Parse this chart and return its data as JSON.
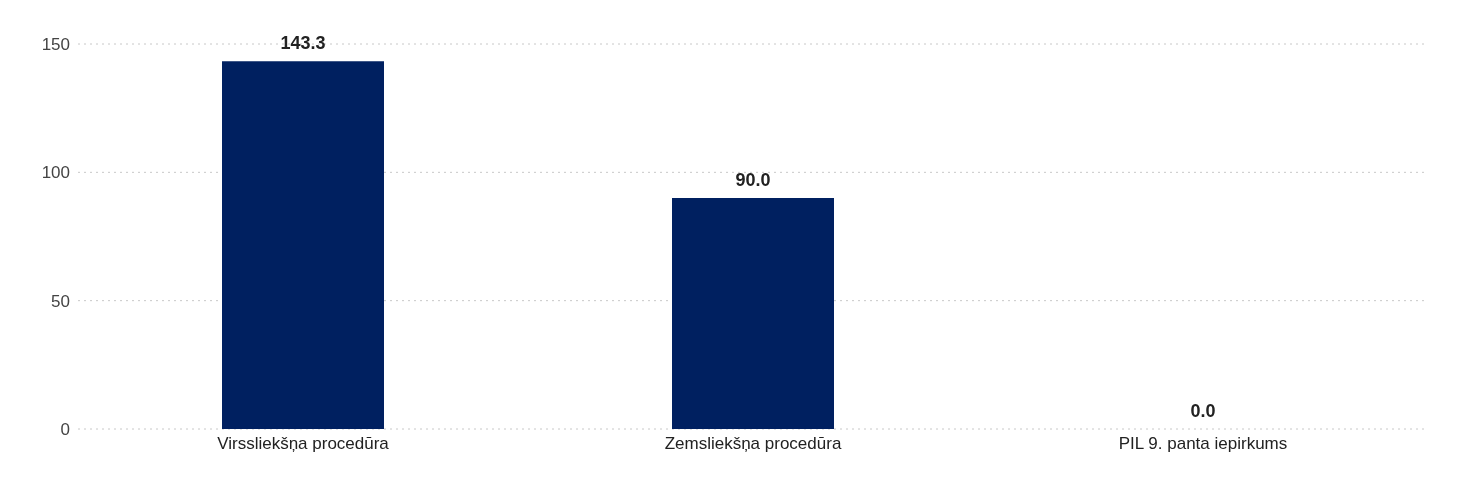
{
  "chart_data": {
    "type": "bar",
    "categories": [
      "Virssliekšņa procedūra",
      "Zemsliekšņa procedūra",
      "PIL 9. panta iepirkums"
    ],
    "values": [
      143.3,
      90.0,
      0.0
    ],
    "color": "#002060",
    "ylim": [
      0,
      150
    ],
    "yticks": [
      0,
      50,
      100,
      150
    ],
    "value_labels": [
      "143.3",
      "90.0",
      "0.0"
    ],
    "grid": "y"
  }
}
